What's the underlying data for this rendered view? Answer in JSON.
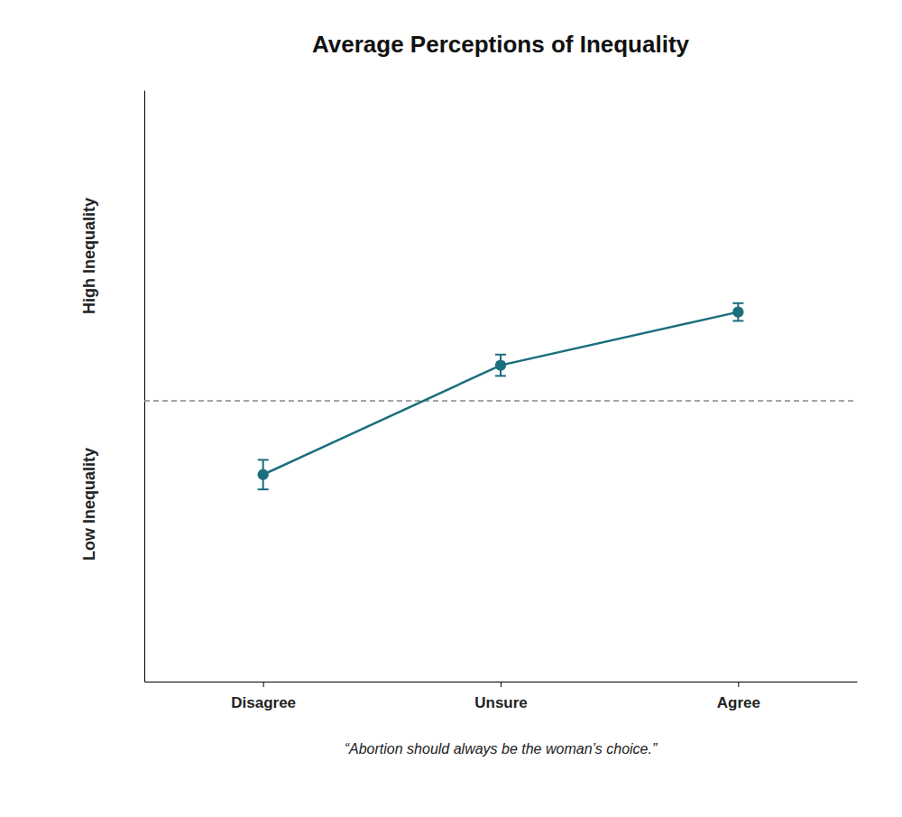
{
  "chart_data": {
    "type": "line",
    "title": "Average Perceptions of Inequality",
    "xlabel": "“Abortion should always be the woman’s choice.”",
    "annotations": [
      "High Inequality",
      "Low Inequality"
    ],
    "x": [
      0,
      1,
      2
    ],
    "values": [
      0.35,
      0.535,
      0.625
    ],
    "errors": [
      0.025,
      0.018,
      0.015
    ],
    "reference_y": 0.475,
    "color": "#1a6e7e",
    "marker": "circle",
    "line_style": "solid",
    "xlim": [
      -0.5,
      2.5
    ],
    "xticks": [
      {
        "value": 0,
        "label": "Disagree"
      },
      {
        "value": 1,
        "label": "Unsure"
      },
      {
        "value": 2,
        "label": "Agree"
      }
    ],
    "ylim": [
      0.0,
      1.0
    ],
    "yticks": [],
    "tick_labels": "x",
    "grid": false
  }
}
